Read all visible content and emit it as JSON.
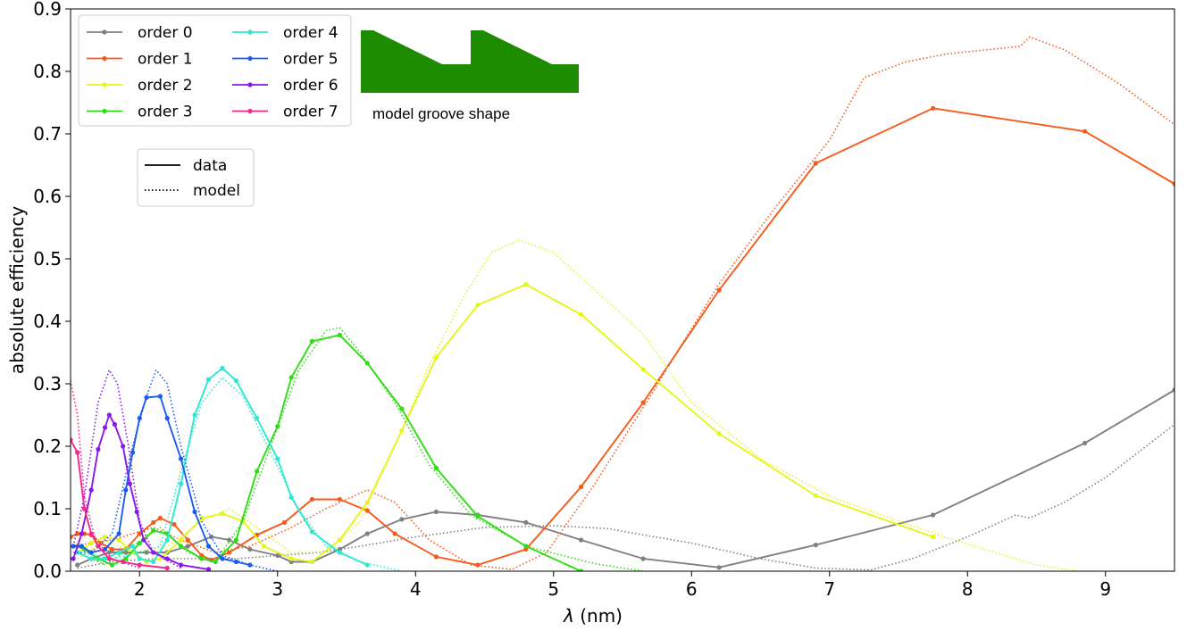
{
  "chart_data": {
    "type": "line",
    "xlabel_italic": "λ",
    "xlabel_units": " (nm)",
    "ylabel": "absolute efficiency",
    "xlim": [
      1.5,
      9.5
    ],
    "ylim": [
      0.0,
      0.9
    ],
    "grid": false,
    "x_ticks": [
      2,
      3,
      4,
      5,
      6,
      7,
      8,
      9
    ],
    "y_ticks": [
      "0.0",
      "0.1",
      "0.2",
      "0.3",
      "0.4",
      "0.5",
      "0.6",
      "0.7",
      "0.8",
      "0.9"
    ],
    "legend_position": "top-left",
    "style_legend": [
      {
        "label": "data",
        "dash": "solid"
      },
      {
        "label": "model",
        "dash": "dotted"
      }
    ],
    "inset": {
      "caption": "model groove shape",
      "color": "#1e8c00"
    },
    "series": [
      {
        "name": "order 0",
        "color": "#808080",
        "data": [
          [
            1.55,
            0.01
          ],
          [
            1.65,
            0.02
          ],
          [
            1.78,
            0.03
          ],
          [
            1.9,
            0.03
          ],
          [
            2.05,
            0.03
          ],
          [
            2.2,
            0.03
          ],
          [
            2.35,
            0.04
          ],
          [
            2.52,
            0.055
          ],
          [
            2.65,
            0.05
          ],
          [
            2.8,
            0.035
          ],
          [
            3.0,
            0.025
          ],
          [
            3.1,
            0.015
          ],
          [
            3.25,
            0.015
          ],
          [
            3.45,
            0.035
          ],
          [
            3.65,
            0.06
          ],
          [
            3.9,
            0.083
          ],
          [
            4.15,
            0.095
          ],
          [
            4.45,
            0.09
          ],
          [
            4.8,
            0.078
          ],
          [
            5.2,
            0.05
          ],
          [
            5.65,
            0.02
          ],
          [
            6.2,
            0.006
          ],
          [
            6.9,
            0.042
          ],
          [
            7.75,
            0.09
          ],
          [
            8.85,
            0.205
          ],
          [
            9.5,
            0.29
          ]
        ],
        "model": [
          [
            1.55,
            0.005
          ],
          [
            1.8,
            0.015
          ],
          [
            2.1,
            0.02
          ],
          [
            2.4,
            0.02
          ],
          [
            2.7,
            0.02
          ],
          [
            3.0,
            0.025
          ],
          [
            3.3,
            0.03
          ],
          [
            3.6,
            0.04
          ],
          [
            4.0,
            0.055
          ],
          [
            4.5,
            0.07
          ],
          [
            5.0,
            0.073
          ],
          [
            5.4,
            0.068
          ],
          [
            5.65,
            0.058
          ],
          [
            6.0,
            0.045
          ],
          [
            6.5,
            0.02
          ],
          [
            6.9,
            0.005
          ],
          [
            7.3,
            0.002
          ],
          [
            7.6,
            0.02
          ],
          [
            8.0,
            0.055
          ],
          [
            8.35,
            0.09
          ],
          [
            8.45,
            0.085
          ],
          [
            8.7,
            0.11
          ],
          [
            9.0,
            0.15
          ],
          [
            9.5,
            0.235
          ]
        ]
      },
      {
        "name": "order 1",
        "color": "#f65a1c",
        "data": [
          [
            1.5,
            0.055
          ],
          [
            1.55,
            0.06
          ],
          [
            1.6,
            0.06
          ],
          [
            1.65,
            0.058
          ],
          [
            1.72,
            0.045
          ],
          [
            1.8,
            0.035
          ],
          [
            1.9,
            0.035
          ],
          [
            2.0,
            0.06
          ],
          [
            2.1,
            0.078
          ],
          [
            2.15,
            0.085
          ],
          [
            2.25,
            0.075
          ],
          [
            2.35,
            0.05
          ],
          [
            2.45,
            0.025
          ],
          [
            2.52,
            0.018
          ],
          [
            2.65,
            0.03
          ],
          [
            2.85,
            0.058
          ],
          [
            3.05,
            0.078
          ],
          [
            3.25,
            0.115
          ],
          [
            3.45,
            0.115
          ],
          [
            3.65,
            0.097
          ],
          [
            3.85,
            0.06
          ],
          [
            4.15,
            0.023
          ],
          [
            4.45,
            0.01
          ],
          [
            4.8,
            0.035
          ],
          [
            5.2,
            0.135
          ],
          [
            5.65,
            0.27
          ],
          [
            6.2,
            0.45
          ],
          [
            6.9,
            0.653
          ],
          [
            7.75,
            0.741
          ],
          [
            8.85,
            0.704
          ],
          [
            9.5,
            0.62
          ]
        ],
        "model": [
          [
            1.5,
            0.04
          ],
          [
            1.8,
            0.05
          ],
          [
            2.1,
            0.07
          ],
          [
            2.3,
            0.05
          ],
          [
            2.55,
            0.03
          ],
          [
            2.8,
            0.04
          ],
          [
            3.1,
            0.07
          ],
          [
            3.35,
            0.1
          ],
          [
            3.65,
            0.13
          ],
          [
            3.85,
            0.11
          ],
          [
            4.1,
            0.05
          ],
          [
            4.4,
            0.01
          ],
          [
            4.7,
            0.003
          ],
          [
            4.95,
            0.03
          ],
          [
            5.3,
            0.14
          ],
          [
            5.7,
            0.28
          ],
          [
            6.2,
            0.46
          ],
          [
            6.6,
            0.58
          ],
          [
            7.0,
            0.69
          ],
          [
            7.25,
            0.79
          ],
          [
            7.55,
            0.815
          ],
          [
            7.85,
            0.828
          ],
          [
            8.2,
            0.836
          ],
          [
            8.38,
            0.84
          ],
          [
            8.45,
            0.855
          ],
          [
            8.7,
            0.835
          ],
          [
            9.1,
            0.78
          ],
          [
            9.5,
            0.715
          ]
        ]
      },
      {
        "name": "order 2",
        "color": "#e7f51c",
        "data": [
          [
            1.55,
            0.03
          ],
          [
            1.65,
            0.045
          ],
          [
            1.75,
            0.055
          ],
          [
            1.85,
            0.05
          ],
          [
            1.95,
            0.03
          ],
          [
            2.05,
            0.015
          ],
          [
            2.15,
            0.02
          ],
          [
            2.3,
            0.05
          ],
          [
            2.45,
            0.085
          ],
          [
            2.6,
            0.092
          ],
          [
            2.75,
            0.08
          ],
          [
            2.9,
            0.04
          ],
          [
            3.1,
            0.02
          ],
          [
            3.25,
            0.015
          ],
          [
            3.45,
            0.05
          ],
          [
            3.65,
            0.11
          ],
          [
            3.9,
            0.225
          ],
          [
            4.15,
            0.342
          ],
          [
            4.45,
            0.426
          ],
          [
            4.8,
            0.459
          ],
          [
            5.2,
            0.411
          ],
          [
            5.65,
            0.323
          ],
          [
            6.2,
            0.22
          ],
          [
            6.9,
            0.121
          ],
          [
            7.75,
            0.055
          ]
        ],
        "model": [
          [
            1.55,
            0.02
          ],
          [
            1.75,
            0.05
          ],
          [
            1.95,
            0.03
          ],
          [
            2.2,
            0.04
          ],
          [
            2.45,
            0.08
          ],
          [
            2.65,
            0.1
          ],
          [
            2.85,
            0.07
          ],
          [
            3.1,
            0.03
          ],
          [
            3.35,
            0.03
          ],
          [
            3.6,
            0.08
          ],
          [
            3.85,
            0.2
          ],
          [
            4.1,
            0.33
          ],
          [
            4.35,
            0.44
          ],
          [
            4.55,
            0.51
          ],
          [
            4.75,
            0.53
          ],
          [
            5.0,
            0.51
          ],
          [
            5.3,
            0.45
          ],
          [
            5.65,
            0.38
          ],
          [
            6.0,
            0.27
          ],
          [
            6.5,
            0.18
          ],
          [
            7.0,
            0.12
          ],
          [
            7.5,
            0.08
          ],
          [
            7.9,
            0.05
          ],
          [
            8.5,
            0.01
          ],
          [
            8.8,
            0.0
          ]
        ]
      },
      {
        "name": "order 3",
        "color": "#2fdc16",
        "data": [
          [
            1.55,
            0.04
          ],
          [
            1.6,
            0.035
          ],
          [
            1.7,
            0.02
          ],
          [
            1.8,
            0.01
          ],
          [
            1.9,
            0.02
          ],
          [
            2.0,
            0.045
          ],
          [
            2.1,
            0.065
          ],
          [
            2.2,
            0.06
          ],
          [
            2.3,
            0.04
          ],
          [
            2.45,
            0.02
          ],
          [
            2.55,
            0.015
          ],
          [
            2.7,
            0.05
          ],
          [
            2.85,
            0.16
          ],
          [
            3.0,
            0.232
          ],
          [
            3.1,
            0.31
          ],
          [
            3.25,
            0.368
          ],
          [
            3.45,
            0.378
          ],
          [
            3.65,
            0.333
          ],
          [
            3.9,
            0.26
          ],
          [
            4.15,
            0.165
          ],
          [
            4.45,
            0.088
          ],
          [
            4.8,
            0.04
          ],
          [
            5.2,
            0.0
          ]
        ],
        "model": [
          [
            1.55,
            0.03
          ],
          [
            1.75,
            0.01
          ],
          [
            1.95,
            0.04
          ],
          [
            2.15,
            0.07
          ],
          [
            2.35,
            0.03
          ],
          [
            2.55,
            0.015
          ],
          [
            2.75,
            0.08
          ],
          [
            2.95,
            0.2
          ],
          [
            3.15,
            0.32
          ],
          [
            3.35,
            0.385
          ],
          [
            3.45,
            0.39
          ],
          [
            3.6,
            0.35
          ],
          [
            3.85,
            0.27
          ],
          [
            4.1,
            0.17
          ],
          [
            4.4,
            0.09
          ],
          [
            4.8,
            0.04
          ],
          [
            5.3,
            0.012
          ],
          [
            5.65,
            0.0
          ]
        ]
      },
      {
        "name": "order 4",
        "color": "#2ee8d0",
        "data": [
          [
            1.55,
            0.03
          ],
          [
            1.65,
            0.02
          ],
          [
            1.75,
            0.02
          ],
          [
            1.85,
            0.03
          ],
          [
            1.95,
            0.04
          ],
          [
            2.0,
            0.02
          ],
          [
            2.1,
            0.015
          ],
          [
            2.2,
            0.05
          ],
          [
            2.3,
            0.14
          ],
          [
            2.4,
            0.25
          ],
          [
            2.5,
            0.307
          ],
          [
            2.6,
            0.325
          ],
          [
            2.7,
            0.305
          ],
          [
            2.85,
            0.245
          ],
          [
            3.0,
            0.18
          ],
          [
            3.1,
            0.118
          ],
          [
            3.25,
            0.063
          ],
          [
            3.45,
            0.03
          ],
          [
            3.65,
            0.01
          ]
        ],
        "model": [
          [
            1.55,
            0.03
          ],
          [
            1.8,
            0.02
          ],
          [
            2.0,
            0.03
          ],
          [
            2.15,
            0.04
          ],
          [
            2.3,
            0.16
          ],
          [
            2.45,
            0.27
          ],
          [
            2.6,
            0.31
          ],
          [
            2.75,
            0.28
          ],
          [
            2.95,
            0.19
          ],
          [
            3.15,
            0.1
          ],
          [
            3.35,
            0.04
          ],
          [
            3.6,
            0.015
          ],
          [
            3.9,
            0.0
          ]
        ]
      },
      {
        "name": "order 5",
        "color": "#1b5bf0",
        "data": [
          [
            1.52,
            0.04
          ],
          [
            1.58,
            0.04
          ],
          [
            1.65,
            0.03
          ],
          [
            1.75,
            0.035
          ],
          [
            1.85,
            0.06
          ],
          [
            1.9,
            0.13
          ],
          [
            1.95,
            0.19
          ],
          [
            2.0,
            0.245
          ],
          [
            2.05,
            0.278
          ],
          [
            2.15,
            0.28
          ],
          [
            2.2,
            0.245
          ],
          [
            2.3,
            0.18
          ],
          [
            2.4,
            0.095
          ],
          [
            2.5,
            0.04
          ],
          [
            2.6,
            0.02
          ],
          [
            2.7,
            0.015
          ],
          [
            2.8,
            0.01
          ]
        ],
        "model": [
          [
            1.52,
            0.03
          ],
          [
            1.65,
            0.03
          ],
          [
            1.8,
            0.06
          ],
          [
            1.95,
            0.2
          ],
          [
            2.05,
            0.28
          ],
          [
            2.12,
            0.322
          ],
          [
            2.2,
            0.3
          ],
          [
            2.3,
            0.2
          ],
          [
            2.45,
            0.08
          ],
          [
            2.6,
            0.025
          ],
          [
            2.8,
            0.01
          ],
          [
            3.0,
            0.0
          ]
        ]
      },
      {
        "name": "order 6",
        "color": "#8a18e8",
        "data": [
          [
            1.52,
            0.02
          ],
          [
            1.58,
            0.06
          ],
          [
            1.65,
            0.13
          ],
          [
            1.7,
            0.195
          ],
          [
            1.75,
            0.23
          ],
          [
            1.78,
            0.25
          ],
          [
            1.82,
            0.235
          ],
          [
            1.88,
            0.2
          ],
          [
            1.93,
            0.14
          ],
          [
            1.98,
            0.095
          ],
          [
            2.03,
            0.05
          ],
          [
            2.1,
            0.03
          ],
          [
            2.2,
            0.02
          ],
          [
            2.3,
            0.01
          ],
          [
            2.5,
            0.003
          ]
        ],
        "model": [
          [
            1.52,
            0.04
          ],
          [
            1.6,
            0.12
          ],
          [
            1.7,
            0.27
          ],
          [
            1.78,
            0.322
          ],
          [
            1.84,
            0.3
          ],
          [
            1.92,
            0.2
          ],
          [
            2.0,
            0.08
          ],
          [
            2.1,
            0.03
          ],
          [
            2.3,
            0.005
          ]
        ]
      },
      {
        "name": "order 7",
        "color": "#f2288c",
        "data": [
          [
            1.5,
            0.21
          ],
          [
            1.55,
            0.19
          ],
          [
            1.6,
            0.1
          ],
          [
            1.65,
            0.06
          ],
          [
            1.7,
            0.04
          ],
          [
            1.78,
            0.02
          ],
          [
            1.88,
            0.015
          ],
          [
            2.0,
            0.01
          ],
          [
            2.2,
            0.005
          ]
        ],
        "model": [
          [
            1.5,
            0.305
          ],
          [
            1.55,
            0.25
          ],
          [
            1.6,
            0.12
          ],
          [
            1.68,
            0.05
          ],
          [
            1.8,
            0.02
          ],
          [
            2.0,
            0.005
          ]
        ]
      }
    ]
  }
}
